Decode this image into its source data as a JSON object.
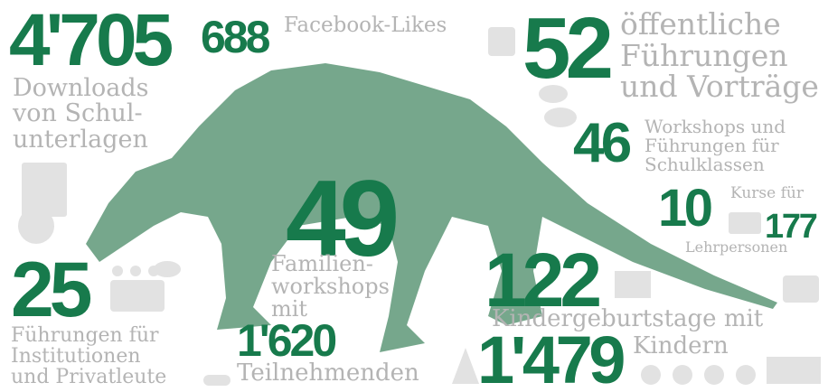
{
  "stats": [
    {
      "number": "4'705",
      "label": [
        "Downloads",
        "von Schul-",
        "unterlagen"
      ]
    },
    {
      "number": "688",
      "label": [
        "Facebook-Likes"
      ]
    },
    {
      "number": "52",
      "label": [
        "öffentliche",
        "Führungen",
        "und Vorträge"
      ]
    },
    {
      "number": "46",
      "label": [
        "Workshops und",
        "Führungen für",
        "Schulklassen"
      ]
    },
    {
      "number": "10",
      "label": [
        "Kurse für"
      ]
    },
    {
      "number": "177",
      "label": [
        "Lehrpersonen"
      ]
    },
    {
      "number": "49",
      "label": [
        "Familien-",
        "workshops",
        "mit"
      ]
    },
    {
      "number": "1'620",
      "label": [
        "Teilnehmenden"
      ]
    },
    {
      "number": "25",
      "label": [
        "Führungen für",
        "Institutionen",
        "und Privatleute"
      ]
    },
    {
      "number": "122",
      "label": [
        "Kindergeburtstage mit"
      ]
    },
    {
      "number": "1'479",
      "label": [
        "Kindern"
      ]
    }
  ]
}
